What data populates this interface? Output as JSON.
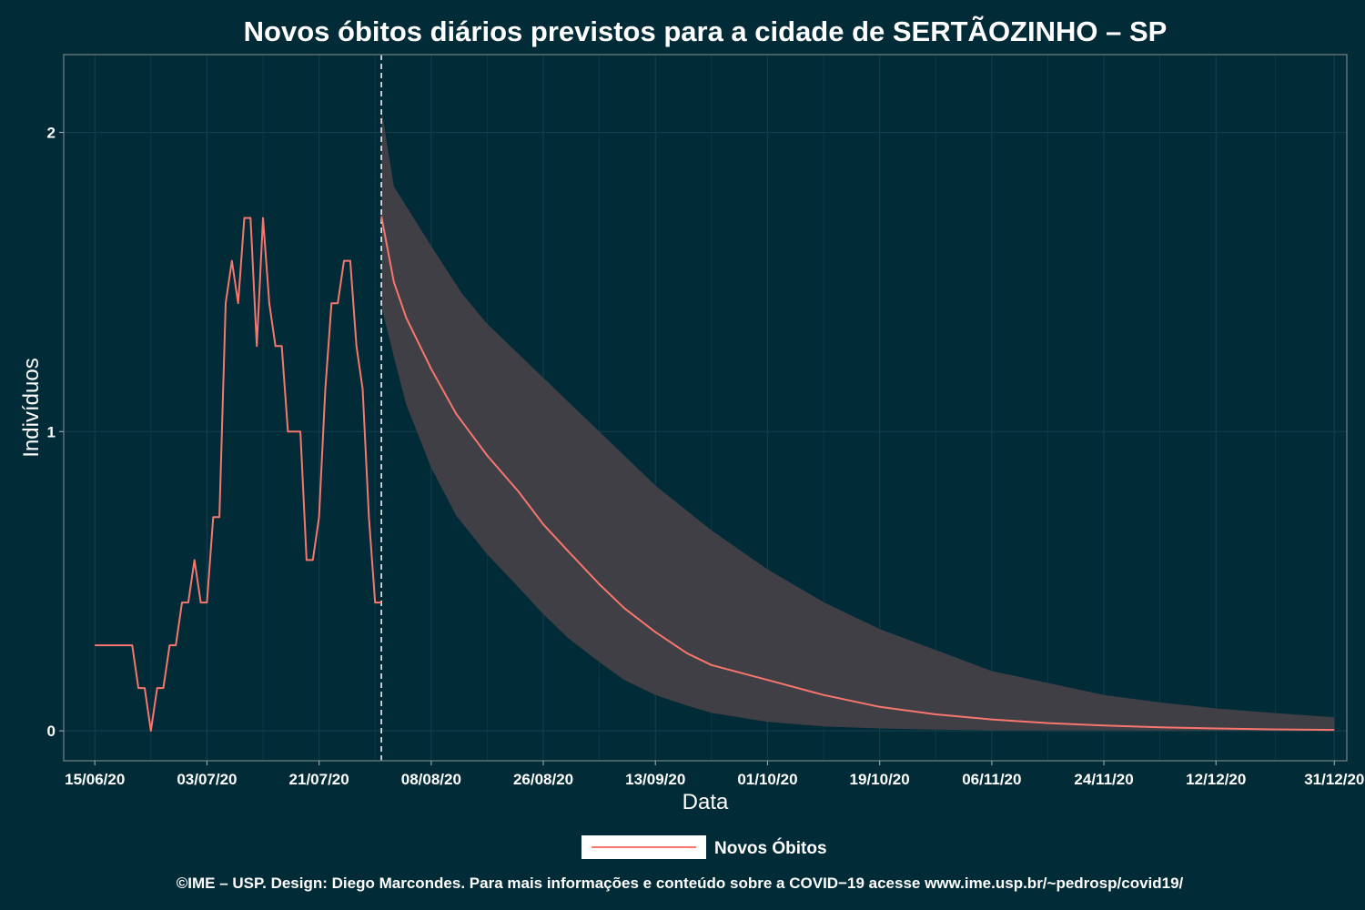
{
  "chart_data": {
    "type": "line",
    "title": "Novos óbitos diários previstos para a cidade de SERTÃOZINHO – SP",
    "xlabel": "Data",
    "ylabel": "Indivíduos",
    "x_tick_labels": [
      "15/06/20",
      "03/07/20",
      "21/07/20",
      "08/08/20",
      "26/08/20",
      "13/09/20",
      "01/10/20",
      "19/10/20",
      "06/11/20",
      "24/11/20",
      "12/12/20",
      "31/12/20"
    ],
    "y_ticks": [
      0,
      1,
      2
    ],
    "y_tick_labels": [
      "0",
      "1",
      "2"
    ],
    "ylim": [
      -0.1,
      2.26
    ],
    "xlim": [
      "2020-06-10",
      "2021-01-02"
    ],
    "grid": true,
    "legend": {
      "position": "bottom",
      "entries": [
        "Novos Óbitos"
      ]
    },
    "forecast_start": "2020-07-31",
    "colors": {
      "background": "#022b38",
      "line": "#f8766d",
      "ribbon": "#403f46",
      "grid": "#123d4a",
      "panel_border": "#5d7378",
      "vline": "#ffffff"
    },
    "series": [
      {
        "name": "Novos Óbitos",
        "kind": "observed",
        "points": [
          [
            "2020-06-15",
            0.286
          ],
          [
            "2020-06-16",
            0.286
          ],
          [
            "2020-06-17",
            0.286
          ],
          [
            "2020-06-18",
            0.286
          ],
          [
            "2020-06-19",
            0.286
          ],
          [
            "2020-06-20",
            0.286
          ],
          [
            "2020-06-21",
            0.286
          ],
          [
            "2020-06-22",
            0.143
          ],
          [
            "2020-06-23",
            0.143
          ],
          [
            "2020-06-24",
            0
          ],
          [
            "2020-06-25",
            0.143
          ],
          [
            "2020-06-26",
            0.143
          ],
          [
            "2020-06-27",
            0.286
          ],
          [
            "2020-06-28",
            0.286
          ],
          [
            "2020-06-29",
            0.429
          ],
          [
            "2020-06-30",
            0.429
          ],
          [
            "2020-07-01",
            0.571
          ],
          [
            "2020-07-02",
            0.429
          ],
          [
            "2020-07-03",
            0.429
          ],
          [
            "2020-07-04",
            0.714
          ],
          [
            "2020-07-05",
            0.714
          ],
          [
            "2020-07-06",
            1.429
          ],
          [
            "2020-07-07",
            1.571
          ],
          [
            "2020-07-08",
            1.429
          ],
          [
            "2020-07-09",
            1.714
          ],
          [
            "2020-07-10",
            1.714
          ],
          [
            "2020-07-11",
            1.286
          ],
          [
            "2020-07-12",
            1.714
          ],
          [
            "2020-07-13",
            1.429
          ],
          [
            "2020-07-14",
            1.286
          ],
          [
            "2020-07-15",
            1.286
          ],
          [
            "2020-07-16",
            1.0
          ],
          [
            "2020-07-17",
            1.0
          ],
          [
            "2020-07-18",
            1.0
          ],
          [
            "2020-07-19",
            0.571
          ],
          [
            "2020-07-20",
            0.571
          ],
          [
            "2020-07-21",
            0.714
          ],
          [
            "2020-07-22",
            1.143
          ],
          [
            "2020-07-23",
            1.429
          ],
          [
            "2020-07-24",
            1.429
          ],
          [
            "2020-07-25",
            1.571
          ],
          [
            "2020-07-26",
            1.571
          ],
          [
            "2020-07-27",
            1.286
          ],
          [
            "2020-07-28",
            1.143
          ],
          [
            "2020-07-29",
            0.714
          ],
          [
            "2020-07-30",
            0.429
          ],
          [
            "2020-07-31",
            0.429
          ]
        ]
      },
      {
        "name": "",
        "kind": "forecast",
        "points": [
          [
            "2020-07-31",
            1.72
          ],
          [
            "2020-08-02",
            1.5
          ],
          [
            "2020-08-04",
            1.38
          ],
          [
            "2020-08-08",
            1.21
          ],
          [
            "2020-08-12",
            1.06
          ],
          [
            "2020-08-17",
            0.92
          ],
          [
            "2020-08-22",
            0.8
          ],
          [
            "2020-08-26",
            0.69
          ],
          [
            "2020-08-30",
            0.6
          ],
          [
            "2020-09-04",
            0.49
          ],
          [
            "2020-09-08",
            0.41
          ],
          [
            "2020-09-13",
            0.33
          ],
          [
            "2020-09-18",
            0.26
          ],
          [
            "2020-09-22",
            0.22
          ],
          [
            "2020-10-01",
            0.17
          ],
          [
            "2020-10-10",
            0.12
          ],
          [
            "2020-10-19",
            0.08
          ],
          [
            "2020-10-28",
            0.055
          ],
          [
            "2020-11-06",
            0.038
          ],
          [
            "2020-11-15",
            0.026
          ],
          [
            "2020-11-24",
            0.018
          ],
          [
            "2020-12-03",
            0.012
          ],
          [
            "2020-12-12",
            0.008
          ],
          [
            "2020-12-21",
            0.005
          ],
          [
            "2020-12-31",
            0.003
          ]
        ],
        "ribbon_upper": [
          [
            "2020-07-31",
            2.08
          ],
          [
            "2020-08-02",
            1.82
          ],
          [
            "2020-08-08",
            1.62
          ],
          [
            "2020-08-13",
            1.46
          ],
          [
            "2020-08-17",
            1.36
          ],
          [
            "2020-08-26",
            1.18
          ],
          [
            "2020-09-04",
            1.0
          ],
          [
            "2020-09-13",
            0.82
          ],
          [
            "2020-09-22",
            0.67
          ],
          [
            "2020-10-01",
            0.54
          ],
          [
            "2020-10-10",
            0.43
          ],
          [
            "2020-10-19",
            0.34
          ],
          [
            "2020-10-28",
            0.27
          ],
          [
            "2020-11-06",
            0.2
          ],
          [
            "2020-11-15",
            0.16
          ],
          [
            "2020-11-24",
            0.12
          ],
          [
            "2020-12-03",
            0.095
          ],
          [
            "2020-12-12",
            0.075
          ],
          [
            "2020-12-21",
            0.06
          ],
          [
            "2020-12-31",
            0.045
          ]
        ],
        "ribbon_lower": [
          [
            "2020-07-31",
            1.42
          ],
          [
            "2020-08-02",
            1.25
          ],
          [
            "2020-08-04",
            1.09
          ],
          [
            "2020-08-08",
            0.88
          ],
          [
            "2020-08-12",
            0.72
          ],
          [
            "2020-08-17",
            0.59
          ],
          [
            "2020-08-22",
            0.48
          ],
          [
            "2020-08-26",
            0.39
          ],
          [
            "2020-08-30",
            0.31
          ],
          [
            "2020-09-04",
            0.23
          ],
          [
            "2020-09-08",
            0.17
          ],
          [
            "2020-09-13",
            0.12
          ],
          [
            "2020-09-18",
            0.085
          ],
          [
            "2020-09-22",
            0.06
          ],
          [
            "2020-10-01",
            0.03
          ],
          [
            "2020-10-10",
            0.015
          ],
          [
            "2020-10-19",
            0.008
          ],
          [
            "2020-10-28",
            0.004
          ],
          [
            "2020-11-06",
            0.002
          ],
          [
            "2020-12-31",
            0.0
          ]
        ]
      }
    ]
  },
  "caption": "©IME – USP. Design: Diego Marcondes. Para mais informações e conteúdo sobre a COVID−19 acesse www.ime.usp.br/~pedrosp/covid19/"
}
